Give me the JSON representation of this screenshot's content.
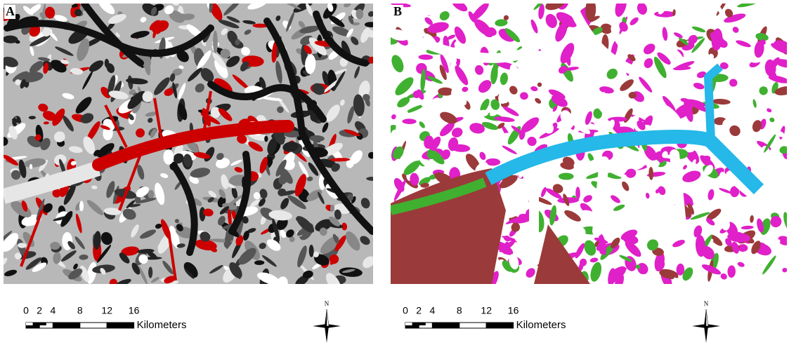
{
  "panels": [
    {
      "label": "A",
      "scale_ticks": [
        0,
        2,
        4,
        8,
        12,
        16
      ],
      "unit": "Kilometers",
      "north": "N"
    },
    {
      "label": "B",
      "scale_ticks": [
        0,
        2,
        4,
        8,
        12,
        16
      ],
      "unit": "Kilometers",
      "north": "N"
    }
  ]
}
